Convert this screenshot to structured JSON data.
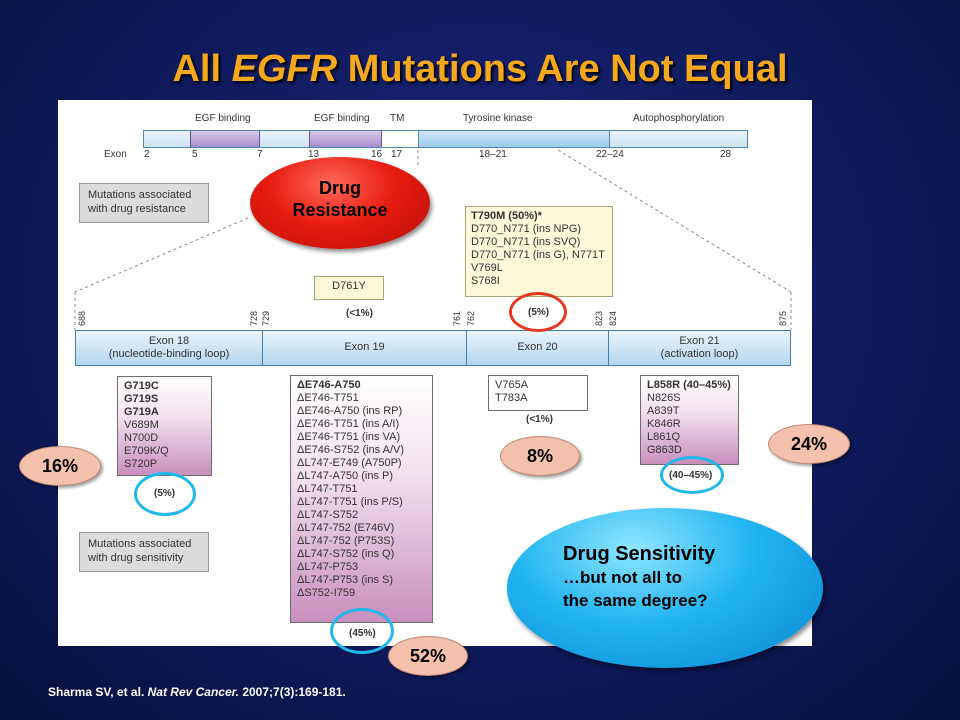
{
  "title": {
    "prefix": "All ",
    "gene": "EGFR",
    "suffix": " Mutations Are Not Equal"
  },
  "gene_map": {
    "domains": [
      "EGF binding",
      "EGF binding",
      "TM",
      "Tyrosine kinase",
      "Autophosphorylation"
    ],
    "exon_label": "Exon",
    "exon_numbers": [
      "2",
      "5",
      "7",
      "13",
      "16",
      "17",
      "18–21",
      "22–24",
      "28"
    ]
  },
  "legend": {
    "resistance": [
      "Mutations associated",
      "with drug resistance"
    ],
    "sensitivity": [
      "Mutations associated",
      "with drug sensitivity"
    ]
  },
  "resistance_box": {
    "bold": "T790M (50%)*",
    "items": [
      "D770_N771 (ins NPG)",
      "D770_N771 (ins SVQ)",
      "D770_N771 (ins G), N771T",
      "V769L",
      "S768I"
    ],
    "pct": "(5%)"
  },
  "d761y": {
    "label": "D761Y",
    "pct": "(<1%)"
  },
  "ticks": [
    "688",
    "728",
    "729",
    "761",
    "762",
    "823",
    "824",
    "875"
  ],
  "exons": [
    {
      "name": "Exon 18",
      "sub": "(nucleotide-binding loop)"
    },
    {
      "name": "Exon 19",
      "sub": ""
    },
    {
      "name": "Exon 20",
      "sub": ""
    },
    {
      "name": "Exon 21",
      "sub": "(activation loop)"
    }
  ],
  "exon18": {
    "bold": [
      "G719C",
      "G719S",
      "G719A"
    ],
    "items": [
      "V689M",
      "N700D",
      "E709K/Q",
      "S720P"
    ],
    "pct": "(5%)"
  },
  "exon19": {
    "bold": "ΔE746-A750",
    "items": [
      "ΔE746-T751",
      "ΔE746-A750 (ins RP)",
      "ΔE746-T751 (ins A/I)",
      "ΔE746-T751 (ins VA)",
      "ΔE746-S752 (ins A/V)",
      "ΔL747-E749 (A750P)",
      "ΔL747-A750 (ins P)",
      "ΔL747-T751",
      "ΔL747-T751 (ins P/S)",
      "ΔL747-S752",
      "ΔL747-752 (E746V)",
      "ΔL747-752 (P753S)",
      "ΔL747-S752 (ins Q)",
      "ΔL747-P753",
      "ΔL747-P753 (ins S)",
      "ΔS752-I759"
    ],
    "pct": "(45%)"
  },
  "exon20": {
    "items": [
      "V765A",
      "T783A"
    ],
    "pct": "(<1%)"
  },
  "exon21": {
    "bold": "L858R (40–45%)",
    "items": [
      "N826S",
      "A839T",
      "K846R",
      "L861Q",
      "G863D"
    ],
    "pct": "(40–45%)"
  },
  "callouts": {
    "resistance": [
      "Drug",
      "Resistance"
    ],
    "sensitivity": {
      "line1": "Drug Sensitivity",
      "line2": "…but not all to",
      "line3": "the same degree?"
    },
    "pct16": "16%",
    "pct52": "52%",
    "pct8": "8%",
    "pct24": "24%"
  },
  "citation": {
    "authors": "Sharma SV, et al. ",
    "journal": "Nat Rev Cancer.",
    "ref": " 2007;7(3):169-181."
  }
}
